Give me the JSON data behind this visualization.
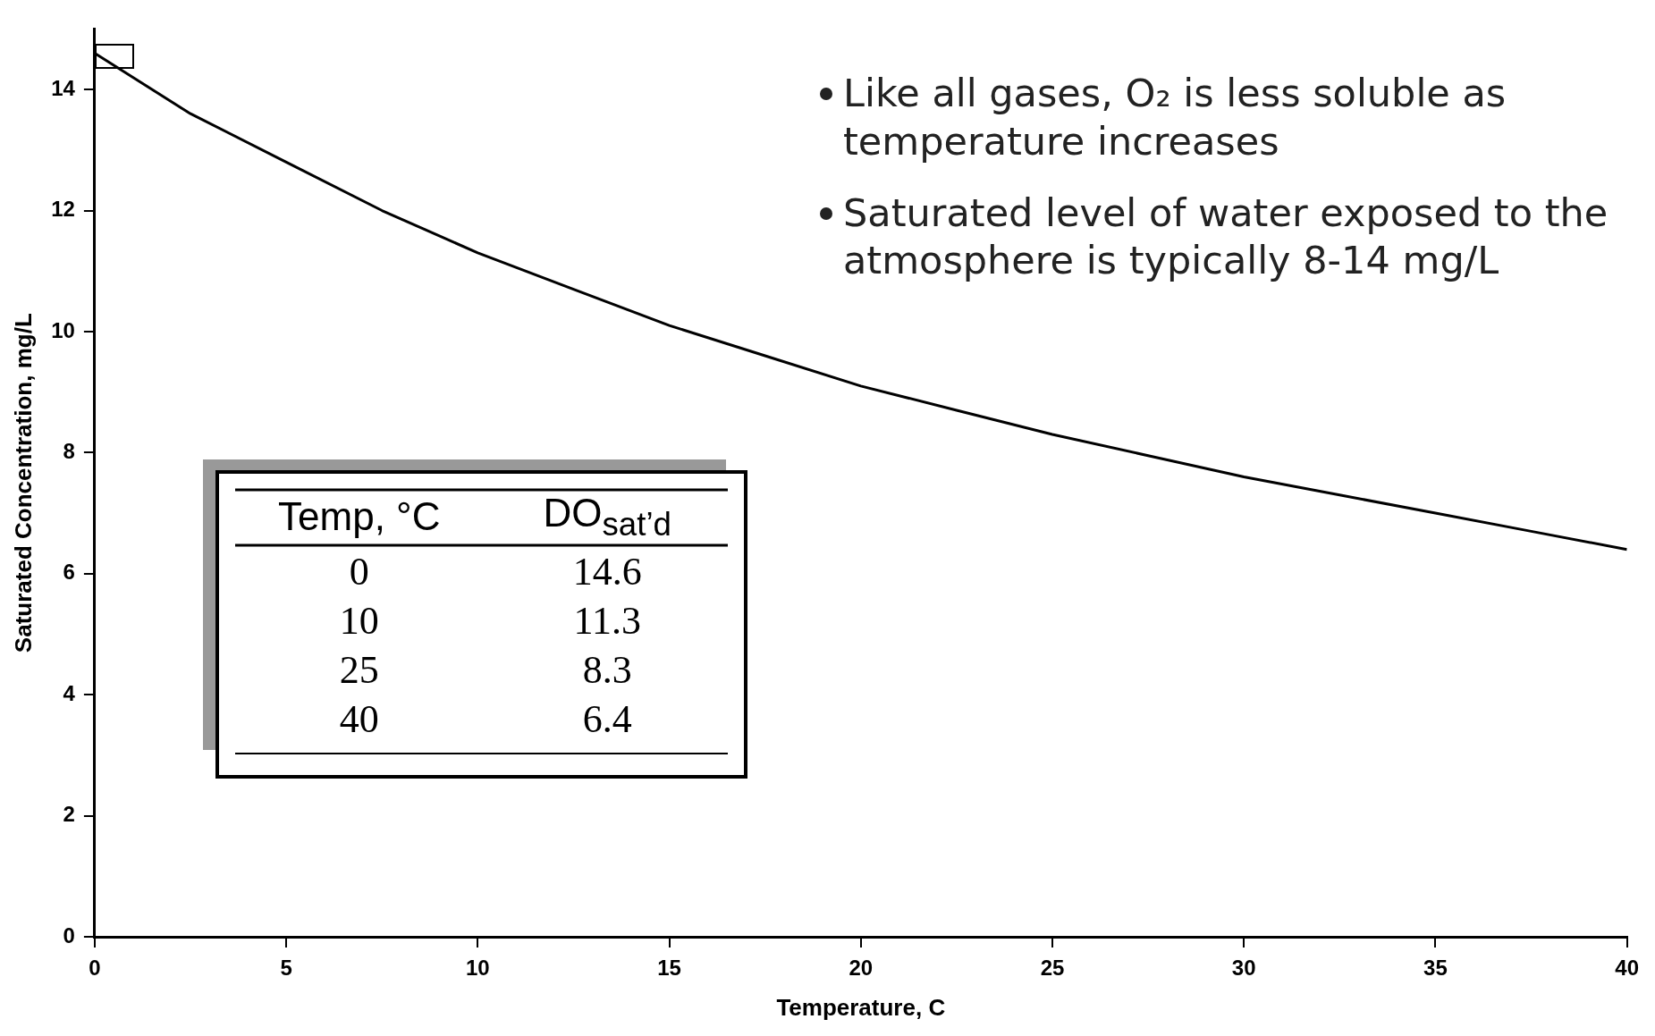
{
  "chart_data": {
    "type": "line",
    "xlabel": "Temperature, C",
    "ylabel": "Saturated Concentration, mg/L",
    "x": [
      0,
      2.5,
      5,
      7.5,
      10,
      12.5,
      15,
      17.5,
      20,
      22.5,
      25,
      27.5,
      30,
      32.5,
      35,
      37.5,
      40
    ],
    "series": [
      {
        "color": "#000000",
        "values": [
          14.6,
          13.6,
          12.8,
          12.0,
          11.3,
          10.7,
          10.1,
          9.6,
          9.1,
          8.7,
          8.3,
          7.95,
          7.6,
          7.3,
          7.0,
          6.7,
          6.4
        ]
      }
    ],
    "xlim": [
      0,
      40
    ],
    "xticks": [
      0,
      5,
      10,
      15,
      20,
      25,
      30,
      35,
      40
    ],
    "ylim": [
      0,
      15
    ],
    "yticks": [
      0,
      2,
      4,
      6,
      8,
      10,
      12,
      14
    ],
    "grid": false,
    "legend": false,
    "marker": "none",
    "line_style": "solid",
    "annotations": [
      "Like all gases, O₂ is less soluble as temperature increases",
      "Saturated level of water exposed to the atmosphere is typically 8-14 mg/L",
      "Temp, °C",
      "DO$_{sat’d}$",
      "0",
      "14.6",
      "10",
      "11.3",
      "25",
      "8.3",
      "40",
      "6.4"
    ]
  }
}
